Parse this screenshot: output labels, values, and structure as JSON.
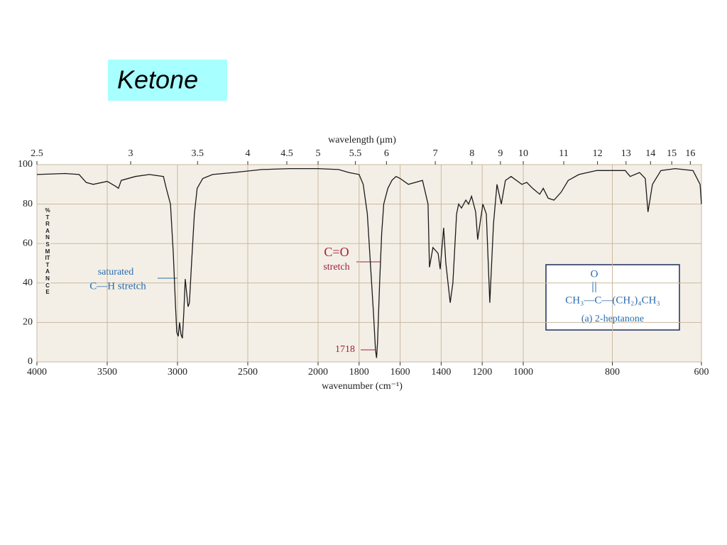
{
  "slide_title": "Ketone",
  "chart_data": {
    "type": "line",
    "x_label": "wavenumber (cm⁻¹)",
    "x2_label": "wavelength (μm)",
    "y_label": "%TRANSMITTANCE",
    "xlim": [
      4000,
      600
    ],
    "ylim": [
      0,
      100
    ],
    "xticks": [
      4000,
      3500,
      3000,
      2500,
      2000,
      1800,
      1600,
      1400,
      1200,
      1000,
      800,
      600
    ],
    "x2ticks": [
      2.5,
      3,
      3.5,
      4,
      4.5,
      5,
      5.5,
      6,
      7,
      8,
      9,
      10,
      11,
      12,
      13,
      14,
      15,
      16
    ],
    "yticks": [
      0,
      20,
      40,
      60,
      80,
      100
    ],
    "grid": true,
    "color": "#1a1a1a",
    "x": [
      4000,
      3800,
      3700,
      3650,
      3600,
      3500,
      3440,
      3420,
      3400,
      3300,
      3200,
      3100,
      3080,
      3050,
      3030,
      3015,
      3005,
      2995,
      2985,
      2975,
      2965,
      2955,
      2945,
      2935,
      2925,
      2915,
      2900,
      2880,
      2860,
      2820,
      2750,
      2600,
      2400,
      2200,
      2000,
      1900,
      1850,
      1800,
      1780,
      1760,
      1745,
      1730,
      1720,
      1715,
      1710,
      1700,
      1690,
      1680,
      1660,
      1640,
      1620,
      1600,
      1560,
      1491,
      1464,
      1457,
      1440,
      1415,
      1405,
      1388,
      1377,
      1356,
      1343,
      1325,
      1315,
      1301,
      1280,
      1266,
      1252,
      1232,
      1222,
      1197,
      1180,
      1163,
      1145,
      1128,
      1107,
      1087,
      1059,
      1007,
      992,
      979,
      963,
      955,
      944,
      931,
      915,
      899,
      875,
      835,
      771,
      760,
      739,
      726,
      720,
      710,
      691,
      659,
      619,
      603,
      600
    ],
    "values": [
      95,
      95.5,
      95,
      91,
      90,
      91.5,
      89,
      88,
      92,
      94,
      95,
      94,
      88,
      80,
      55,
      30,
      15,
      13,
      20,
      14,
      12,
      25,
      42,
      35,
      28,
      30,
      50,
      75,
      88,
      93,
      95,
      96,
      97.5,
      98,
      98,
      97.5,
      96,
      95,
      90,
      75,
      50,
      25,
      6,
      2,
      10,
      40,
      65,
      80,
      88,
      92,
      94,
      93,
      90,
      92,
      80,
      48,
      58,
      55,
      47,
      68,
      50,
      30,
      40,
      75,
      80,
      78,
      82,
      80,
      84,
      76,
      62,
      80,
      75,
      30,
      70,
      90,
      80,
      92,
      94,
      90,
      91,
      88,
      85,
      88,
      83,
      82,
      86,
      92,
      95,
      97,
      97,
      94,
      96,
      93,
      76,
      90,
      97,
      98,
      97,
      90,
      80
    ],
    "annotations": [
      "C=O",
      "stretch",
      "saturated",
      "C—H  stretch",
      "1718"
    ],
    "molecule": {
      "oxygen": "O",
      "formula": "CH₃—C—(CH₂)₄CH₃",
      "caption": "(a) 2-heptanone"
    }
  }
}
